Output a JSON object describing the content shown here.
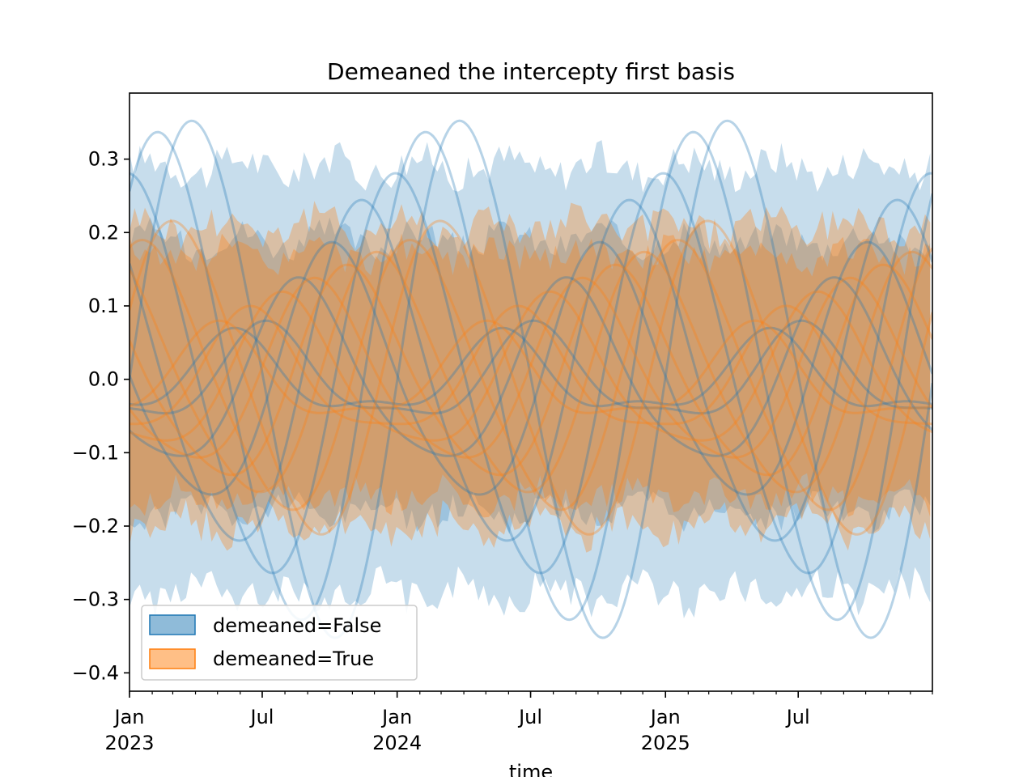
{
  "chart_data": {
    "type": "area",
    "title": "Demeaned the intercepty first basis",
    "xlabel": "time",
    "ylabel": "",
    "x_range": [
      "2023-01-01",
      "2025-12-31"
    ],
    "ylim": [
      -0.425,
      0.39
    ],
    "y_ticks": [
      0.3,
      0.2,
      0.1,
      0.0,
      -0.1,
      -0.2,
      -0.3,
      -0.4
    ],
    "y_tick_labels": [
      "0.3",
      "0.2",
      "0.1",
      "0.0",
      "−0.1",
      "−0.2",
      "−0.3",
      "−0.4"
    ],
    "x_major_ticks": [
      {
        "date": "2023-01-01",
        "label": "Jan",
        "year": "2023"
      },
      {
        "date": "2023-07-01",
        "label": "Jul",
        "year": ""
      },
      {
        "date": "2024-01-01",
        "label": "Jan",
        "year": "2024"
      },
      {
        "date": "2024-07-01",
        "label": "Jul",
        "year": ""
      },
      {
        "date": "2025-01-01",
        "label": "Jan",
        "year": "2025"
      },
      {
        "date": "2025-07-01",
        "label": "Jul",
        "year": ""
      }
    ],
    "legend_position": "lower-left",
    "grid": false,
    "series": [
      {
        "name": "demeaned=False",
        "color": "#1f77b4",
        "band_outer": [
          0.29,
          -0.29
        ],
        "band_inner": [
          0.19,
          -0.18
        ],
        "curves": [
          {
            "amp": 0.35,
            "phase": 0.0
          },
          {
            "amp": 0.33,
            "phase": 0.8
          },
          {
            "amp": 0.27,
            "phase": 1.5
          },
          {
            "amp": 0.23,
            "phase": 2.3
          },
          {
            "amp": 0.17,
            "phase": 3.0
          },
          {
            "amp": 0.12,
            "phase": 3.8
          },
          {
            "amp": 0.06,
            "phase": 4.6
          },
          {
            "amp": 0.05,
            "phase": 5.4
          }
        ]
      },
      {
        "name": "demeaned=True",
        "color": "#ff7f0e",
        "band_outer": [
          0.21,
          -0.2
        ],
        "band_inner": [
          0.17,
          -0.16
        ],
        "curves": [
          {
            "amp": 0.21,
            "phase": 0.4
          },
          {
            "amp": 0.18,
            "phase": 1.1
          },
          {
            "amp": 0.16,
            "phase": 1.9
          },
          {
            "amp": 0.14,
            "phase": 2.6
          },
          {
            "amp": 0.12,
            "phase": 3.4
          },
          {
            "amp": 0.1,
            "phase": 4.2
          },
          {
            "amp": 0.08,
            "phase": 5.0
          },
          {
            "amp": 0.06,
            "phase": 5.8
          }
        ]
      }
    ]
  }
}
